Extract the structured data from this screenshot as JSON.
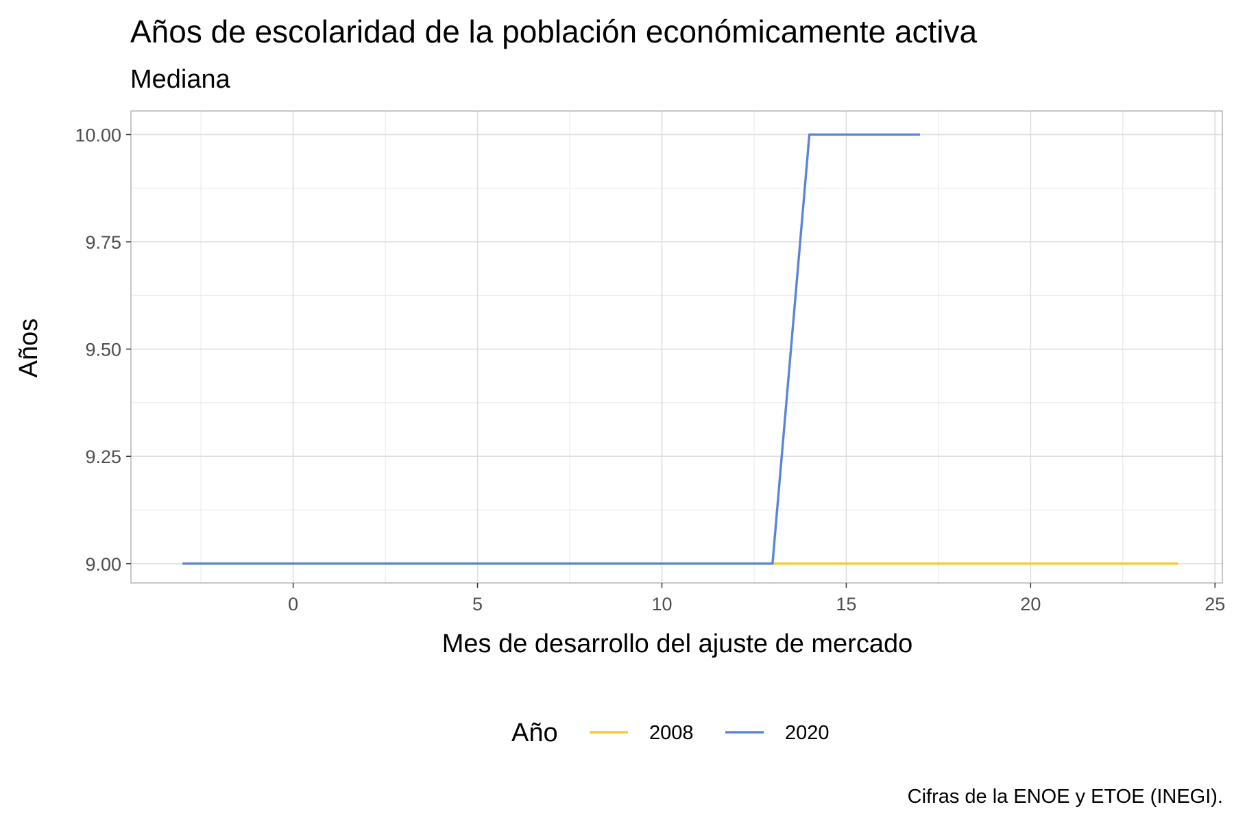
{
  "chart_data": {
    "type": "line",
    "title": "Años de escolaridad de la población económicamente activa",
    "subtitle": "Mediana",
    "xlabel": "Mes de desarrollo del ajuste de mercado",
    "ylabel": "Años",
    "caption": "Cifras de la ENOE y ETOE (INEGI).",
    "xlim": [
      -4.4,
      25.2
    ],
    "ylim": [
      8.955,
      10.055
    ],
    "x_ticks": [
      0,
      5,
      10,
      15,
      20,
      25
    ],
    "x_tick_labels": [
      "0",
      "5",
      "10",
      "15",
      "20",
      "25"
    ],
    "y_ticks": [
      9.0,
      9.25,
      9.5,
      9.75,
      10.0
    ],
    "y_tick_labels": [
      "9.00",
      "9.25",
      "9.50",
      "9.75",
      "10.00"
    ],
    "grid": true,
    "legend": {
      "title": "Año",
      "position": "bottom"
    },
    "series": [
      {
        "name": "2008",
        "color": "#f7ca2d",
        "x": [
          -3,
          -2,
          -1,
          0,
          1,
          2,
          3,
          4,
          5,
          6,
          7,
          8,
          9,
          10,
          11,
          12,
          13,
          14,
          15,
          16,
          17,
          18,
          19,
          20,
          21,
          22,
          23,
          24
        ],
        "y": [
          9,
          9,
          9,
          9,
          9,
          9,
          9,
          9,
          9,
          9,
          9,
          9,
          9,
          9,
          9,
          9,
          9,
          9,
          9,
          9,
          9,
          9,
          9,
          9,
          9,
          9,
          9,
          9
        ]
      },
      {
        "name": "2020",
        "color": "#5b84d9",
        "x": [
          -3,
          -2,
          -1,
          0,
          1,
          2,
          3,
          4,
          5,
          6,
          7,
          8,
          9,
          10,
          11,
          12,
          13,
          14,
          15,
          16,
          17
        ],
        "y": [
          9,
          9,
          9,
          9,
          9,
          9,
          9,
          9,
          9,
          9,
          9,
          9,
          9,
          9,
          9,
          9,
          9,
          10,
          10,
          10,
          10
        ]
      }
    ]
  }
}
